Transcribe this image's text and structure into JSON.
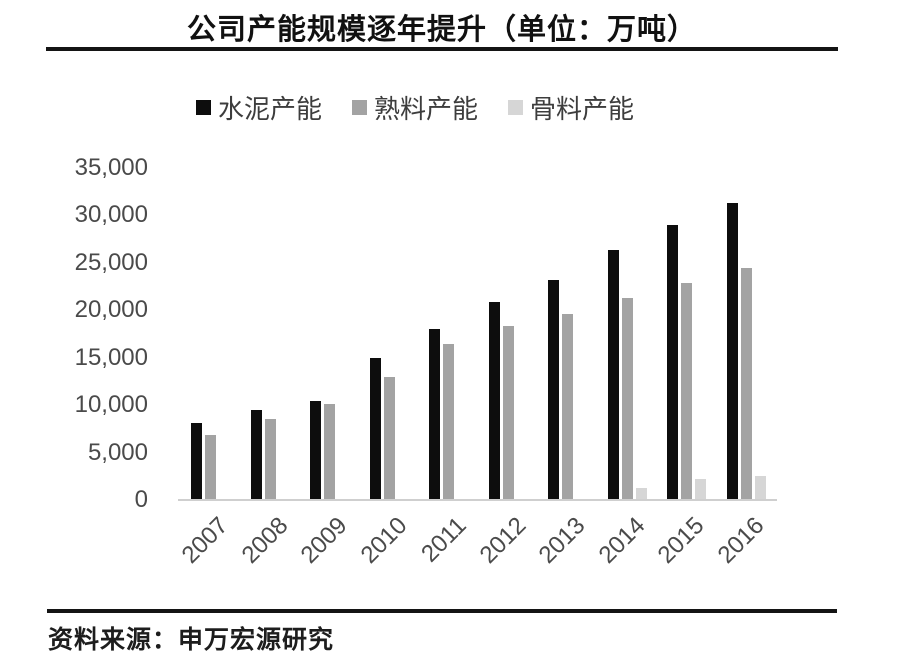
{
  "title": "公司产能规模逐年提升（单位：万吨）",
  "source": "资料来源：申万宏源研究",
  "colors": {
    "cement": "#0d0d0d",
    "clinker": "#a3a3a3",
    "aggregate": "#d6d6d6",
    "axis_line": "#cfcfcf",
    "rule": "#141414",
    "tick_text": "#4a4a4a"
  },
  "legend": [
    {
      "key": "cement",
      "label": "水泥产能",
      "color": "#0d0d0d"
    },
    {
      "key": "clinker",
      "label": "熟料产能",
      "color": "#a3a3a3"
    },
    {
      "key": "aggregate",
      "label": "骨料产能",
      "color": "#d6d6d6"
    }
  ],
  "y_axis": {
    "tick_labels": [
      "0",
      "5,000",
      "10,000",
      "15,000",
      "20,000",
      "25,000",
      "30,000",
      "35,000"
    ],
    "tick_values": [
      0,
      5000,
      10000,
      15000,
      20000,
      25000,
      30000,
      35000
    ]
  },
  "chart_data": {
    "type": "bar",
    "title": "公司产能规模逐年提升（单位：万吨）",
    "categories": [
      "2007",
      "2008",
      "2009",
      "2010",
      "2011",
      "2012",
      "2013",
      "2014",
      "2015",
      "2016"
    ],
    "series": [
      {
        "key": "cement",
        "name": "水泥产能",
        "color": "#0d0d0d",
        "values": [
          8100,
          9500,
          10400,
          15000,
          18000,
          20900,
          23200,
          26400,
          29000,
          31300
        ]
      },
      {
        "key": "clinker",
        "name": "熟料产能",
        "color": "#a3a3a3",
        "values": [
          6900,
          8500,
          10100,
          13000,
          16400,
          18400,
          19600,
          21300,
          22900,
          24500
        ]
      },
      {
        "key": "aggregate",
        "name": "骨料产能",
        "color": "#d6d6d6",
        "values": [
          0,
          0,
          0,
          0,
          0,
          0,
          0,
          1300,
          2200,
          2500
        ]
      }
    ],
    "xlabel": "",
    "ylabel": "",
    "ylim": [
      0,
      35000
    ],
    "y_tick_step": 5000,
    "grid": false,
    "legend_position": "top",
    "x_tick_rotation": 45
  }
}
